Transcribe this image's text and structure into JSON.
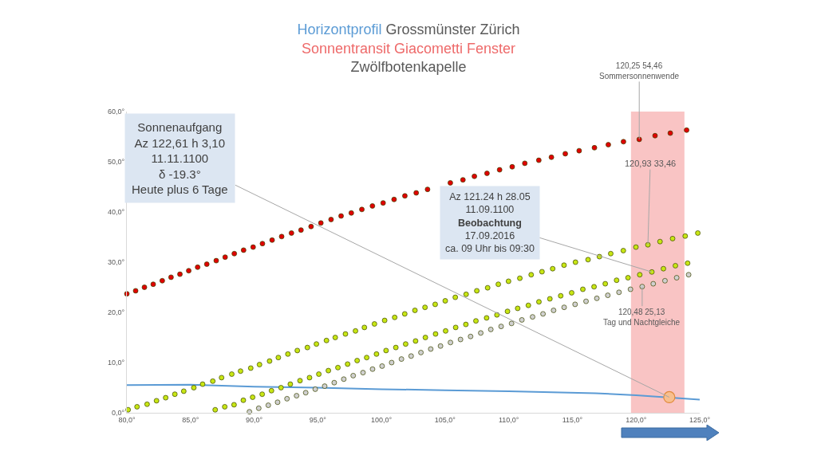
{
  "chart_data": {
    "type": "scatter",
    "title": "Horizontprofil Grossmünster Zürich\nSonnentransit Giacometti Fenster\nZwölfbotenkapelle",
    "marker": "circle",
    "grid": false,
    "xlim": [
      80,
      125
    ],
    "ylim": [
      0,
      60
    ],
    "xticks": [
      {
        "value": 80,
        "label": "80,0°"
      },
      {
        "value": 85,
        "label": "85,0°"
      },
      {
        "value": 90,
        "label": "90,0°"
      },
      {
        "value": 95,
        "label": "95,0°"
      },
      {
        "value": 100,
        "label": "100,0°"
      },
      {
        "value": 105,
        "label": "105,0°"
      },
      {
        "value": 110,
        "label": "110,0°"
      },
      {
        "value": 115,
        "label": "115,0°"
      },
      {
        "value": 120,
        "label": "120,0°"
      },
      {
        "value": 125,
        "label": "125,0°"
      }
    ],
    "yticks": [
      {
        "value": 0,
        "label": "0,0°"
      },
      {
        "value": 10,
        "label": "10,0°"
      },
      {
        "value": 20,
        "label": "20,0°"
      },
      {
        "value": 30,
        "label": "30,0°"
      },
      {
        "value": 40,
        "label": "40,0°"
      },
      {
        "value": 50,
        "label": "50,0°"
      },
      {
        "value": 60,
        "label": "60,0°"
      }
    ],
    "bands": [
      {
        "axis": "x",
        "from": 119.6,
        "to": 123.8,
        "color": "#f9c4c4"
      }
    ],
    "series": [
      {
        "color": "#e00000",
        "x": [
          80.0,
          80.69,
          81.38,
          82.07,
          82.78,
          83.47,
          84.17,
          84.86,
          85.56,
          86.28,
          87.02,
          87.72,
          88.44,
          89.17,
          89.92,
          90.65,
          91.41,
          92.16,
          92.93,
          93.68,
          94.47,
          95.24,
          96.04,
          96.83,
          97.63,
          98.46,
          99.29,
          100.13,
          100.99,
          101.84,
          102.73,
          103.62,
          105.41,
          106.4,
          107.3,
          108.29,
          109.28,
          110.27,
          111.26,
          112.36,
          113.35,
          114.44,
          115.53,
          116.73,
          117.82,
          119.01,
          120.25,
          121.49,
          122.69,
          123.97
        ],
        "values": [
          23.7,
          24.3,
          25.0,
          25.6,
          26.3,
          27.0,
          27.6,
          28.3,
          29.0,
          29.6,
          30.3,
          31.0,
          31.7,
          32.4,
          33.0,
          33.7,
          34.4,
          35.1,
          35.8,
          36.4,
          37.1,
          37.8,
          38.5,
          39.2,
          39.8,
          40.5,
          41.2,
          41.8,
          42.5,
          43.2,
          43.8,
          44.5,
          45.8,
          46.4,
          47.1,
          47.7,
          48.4,
          49.0,
          49.7,
          50.3,
          50.9,
          51.6,
          52.2,
          52.8,
          53.4,
          54.0,
          54.46,
          55.2,
          55.7,
          56.3
        ]
      },
      {
        "color": "#c8e614",
        "x": [
          80.1,
          80.8,
          81.59,
          82.33,
          83.05,
          83.77,
          84.47,
          85.26,
          85.95,
          86.75,
          87.44,
          88.24,
          88.93,
          89.73,
          90.42,
          91.21,
          91.9,
          92.65,
          93.39,
          94.18,
          94.89,
          95.68,
          96.37,
          97.17,
          97.96,
          98.66,
          99.45,
          100.25,
          101.04,
          101.83,
          102.63,
          103.42,
          104.22,
          105.01,
          105.8,
          106.65,
          107.49,
          108.34,
          109.18,
          109.98,
          110.87,
          111.76,
          112.61,
          113.45,
          114.34,
          115.24,
          116.23,
          117.12,
          118.01,
          119.0,
          119.99,
          120.93,
          121.88,
          122.87,
          123.86,
          124.85
        ],
        "values": [
          0.6,
          1.2,
          1.7,
          2.4,
          3.0,
          3.7,
          4.3,
          5.0,
          5.7,
          6.3,
          7.0,
          7.7,
          8.3,
          8.9,
          9.6,
          10.3,
          11.0,
          11.7,
          12.4,
          13.0,
          13.7,
          14.4,
          15.0,
          15.7,
          16.3,
          17.0,
          17.7,
          18.4,
          19.0,
          19.7,
          20.4,
          21.0,
          21.6,
          22.3,
          23.0,
          23.6,
          24.3,
          24.9,
          25.6,
          26.2,
          26.8,
          27.5,
          28.1,
          28.7,
          29.4,
          30.0,
          30.5,
          31.1,
          31.7,
          32.3,
          33.0,
          33.46,
          34.1,
          34.7,
          35.2,
          35.8
        ]
      },
      {
        "color": "#c8e614",
        "x": [
          86.94,
          87.69,
          88.42,
          89.15,
          89.88,
          90.63,
          91.36,
          92.11,
          92.84,
          93.6,
          94.35,
          95.08,
          95.83,
          96.58,
          97.34,
          98.09,
          98.84,
          99.61,
          100.36,
          101.13,
          101.9,
          102.68,
          103.45,
          104.25,
          105.04,
          105.83,
          106.63,
          107.42,
          108.26,
          109.07,
          109.9,
          110.7,
          111.54,
          112.37,
          113.23,
          114.08,
          114.94,
          115.82,
          116.7,
          117.58,
          118.47,
          119.37,
          120.29,
          121.24,
          122.15,
          123.09,
          124.05
        ],
        "values": [
          0.6,
          1.2,
          1.6,
          2.5,
          3.1,
          3.7,
          4.4,
          5.0,
          5.7,
          6.4,
          7.0,
          7.7,
          8.4,
          9.0,
          9.7,
          10.4,
          11.0,
          11.7,
          12.4,
          13.0,
          13.7,
          14.3,
          15.0,
          15.7,
          16.3,
          17.0,
          17.6,
          18.3,
          18.9,
          19.5,
          20.2,
          20.8,
          21.4,
          22.1,
          22.7,
          23.3,
          23.9,
          24.6,
          25.1,
          25.7,
          26.4,
          26.9,
          27.5,
          28.05,
          28.7,
          29.3,
          29.8
        ]
      },
      {
        "color": "#d0d0d0",
        "x": [
          89.63,
          90.36,
          91.11,
          91.84,
          92.58,
          93.33,
          94.05,
          94.8,
          95.54,
          96.29,
          97.04,
          97.78,
          98.55,
          99.3,
          100.05,
          100.8,
          101.57,
          102.33,
          103.1,
          103.87,
          104.64,
          105.42,
          106.21,
          107.0,
          107.8,
          108.59,
          109.4,
          110.22,
          111.03,
          111.87,
          112.69,
          113.52,
          114.35,
          115.21,
          116.07,
          116.92,
          117.78,
          118.66,
          119.56,
          120.48,
          121.35,
          122.27,
          123.19,
          124.13
        ],
        "values": [
          0.2,
          0.9,
          1.5,
          2.1,
          2.8,
          3.4,
          4.0,
          4.7,
          5.3,
          6.0,
          6.7,
          7.4,
          8.0,
          8.7,
          9.3,
          10.0,
          10.7,
          11.3,
          12.0,
          12.7,
          13.3,
          14.0,
          14.6,
          15.2,
          15.9,
          16.6,
          17.2,
          17.8,
          18.5,
          19.1,
          19.7,
          20.4,
          21.0,
          21.6,
          22.2,
          22.8,
          23.4,
          24.0,
          24.6,
          25.13,
          25.7,
          26.3,
          26.9,
          27.5
        ]
      },
      {
        "type": "line",
        "marker": "none",
        "color": "#5b9bd5",
        "x": [
          80,
          85,
          90,
          95,
          100,
          105,
          110,
          116.8,
          120,
          125
        ],
        "values": [
          5.5,
          5.6,
          5.2,
          5.0,
          4.7,
          4.5,
          4.3,
          3.9,
          3.5,
          2.6
        ]
      },
      {
        "color": "#f8bf8f",
        "x": [
          122.61
        ],
        "values": [
          3.1
        ]
      }
    ],
    "annotations": [
      {
        "text": "Sonnenaufgang\nAz 122,61 h 3,10\n11.11.1100\nδ -19.3°\nHeute plus 6 Tage",
        "x": 122.61,
        "y": 3.1
      },
      {
        "text": "Az 121.24 h 28.05\n11.09.1100\nBeobachtung\n17.09.2016\nca. 09 Uhr bis 09:30",
        "x": 121.24,
        "y": 28.05
      },
      {
        "text": "120,25 54,46\nSommersonnenwende",
        "x": 120.25,
        "y": 54.46
      },
      {
        "text": "120,93 33,46",
        "x": 120.93,
        "y": 33.46
      },
      {
        "text": "120,48 25,13\nTag und Nachtgleiche",
        "x": 120.48,
        "y": 25.13
      }
    ]
  }
}
